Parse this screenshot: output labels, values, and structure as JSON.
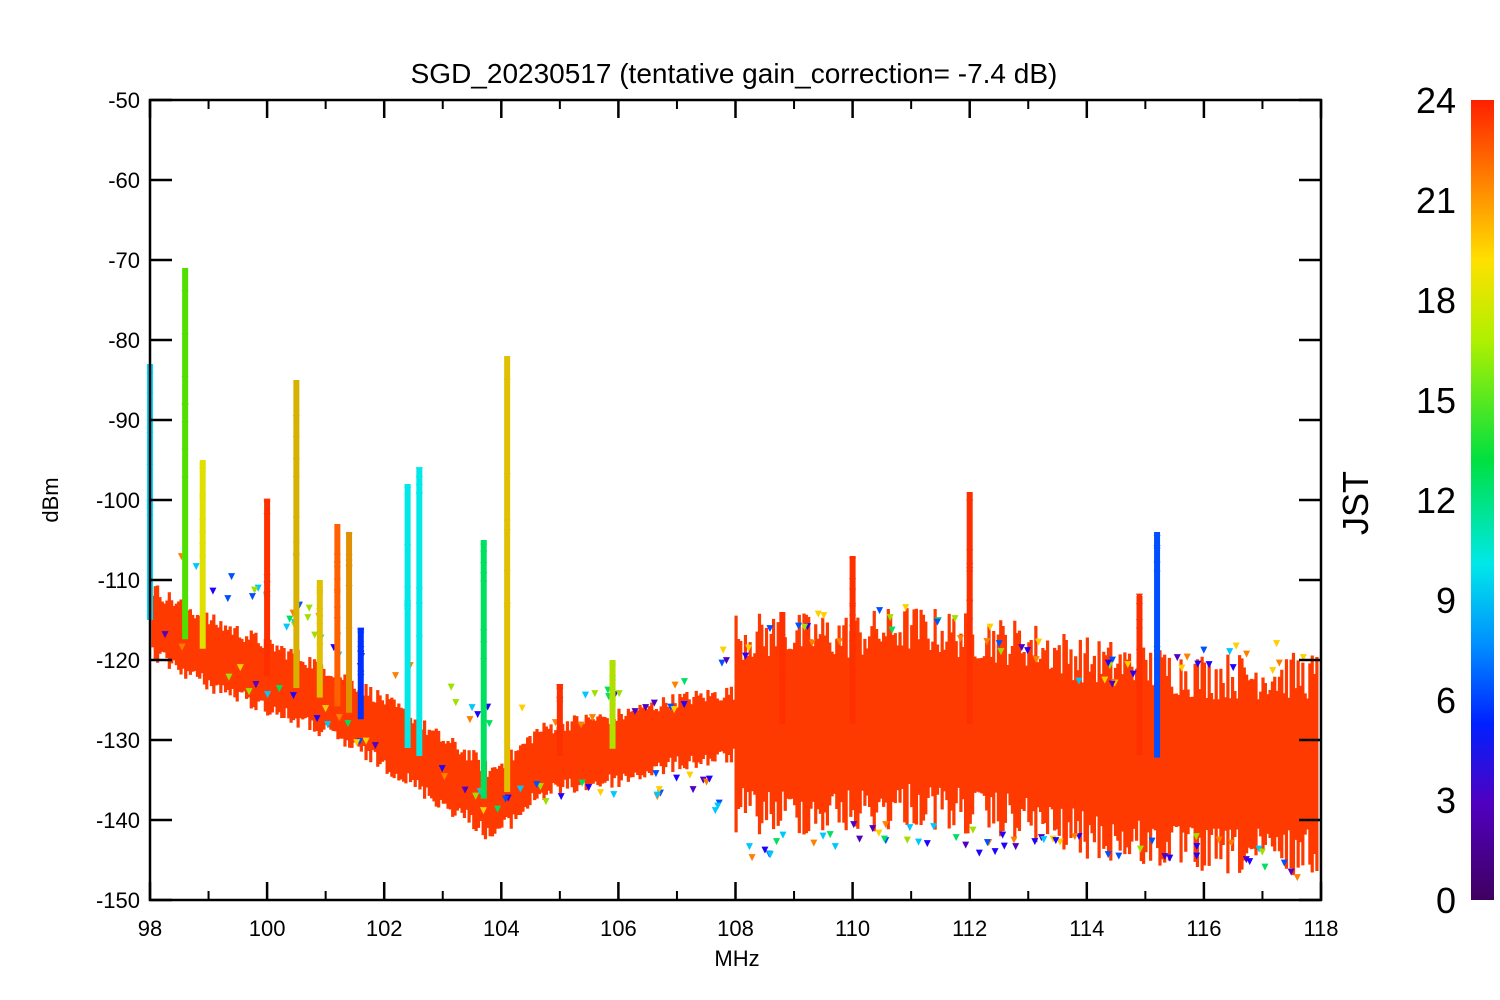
{
  "chart_data": {
    "type": "scatter",
    "title": "SGD_20230517 (tentative gain_correction= -7.4 dB)",
    "xlabel": "MHz",
    "ylabel": "dBm",
    "xlim": [
      98,
      118
    ],
    "ylim": [
      -150,
      -50
    ],
    "x_ticks": [
      "98",
      "100",
      "102",
      "104",
      "106",
      "108",
      "110",
      "112",
      "114",
      "116",
      "118"
    ],
    "y_ticks": [
      "-50",
      "-60",
      "-70",
      "-80",
      "-90",
      "-100",
      "-110",
      "-120",
      "-130",
      "-140",
      "-150"
    ],
    "colorbar": {
      "label": "JST",
      "range": [
        0,
        24
      ],
      "ticks": [
        "0",
        "3",
        "6",
        "9",
        "12",
        "15",
        "18",
        "21",
        "24"
      ],
      "colormap": "rainbow (purple-blue-cyan-green-yellow-red)"
    },
    "grid": false,
    "series": [
      {
        "description_color": "JST-colored",
        "baseline_profile": [
          [
            98,
            -115
          ],
          [
            99,
            -119
          ],
          [
            100,
            -122
          ],
          [
            101,
            -125
          ],
          [
            102,
            -129
          ],
          [
            103,
            -134
          ],
          [
            103.5,
            -136
          ],
          [
            103.8,
            -138
          ],
          [
            104.2,
            -136
          ],
          [
            104.6,
            -133
          ],
          [
            105,
            -132
          ],
          [
            106,
            -131
          ],
          [
            107,
            -129
          ],
          [
            108,
            -128
          ],
          [
            109,
            -128
          ],
          [
            110,
            -128
          ],
          [
            111,
            -127
          ],
          [
            112,
            -128
          ],
          [
            113,
            -129
          ],
          [
            114,
            -131
          ],
          [
            115,
            -132
          ],
          [
            116,
            -133
          ],
          [
            117,
            -133
          ],
          [
            118,
            -133
          ]
        ],
        "upper_envelope": [
          [
            98,
            -106
          ],
          [
            99,
            -110
          ],
          [
            100,
            -113
          ],
          [
            101,
            -117
          ],
          [
            102,
            -121
          ],
          [
            103,
            -125
          ],
          [
            103.8,
            -127
          ],
          [
            104.5,
            -128
          ],
          [
            105,
            -127
          ],
          [
            106,
            -126
          ],
          [
            107,
            -125
          ],
          [
            108,
            -119
          ],
          [
            109,
            -117
          ],
          [
            110,
            -116
          ],
          [
            111,
            -115
          ],
          [
            112,
            -116
          ],
          [
            113,
            -119
          ],
          [
            114,
            -122
          ],
          [
            115,
            -123
          ],
          [
            116,
            -121
          ],
          [
            117,
            -120
          ],
          [
            118,
            -119
          ]
        ],
        "lower_envelope": [
          [
            98,
            -117
          ],
          [
            100,
            -124
          ],
          [
            102,
            -131
          ],
          [
            103.8,
            -138.5
          ],
          [
            104.5,
            -137
          ],
          [
            106,
            -137
          ],
          [
            107.5,
            -135
          ],
          [
            108,
            -144
          ],
          [
            110,
            -142
          ],
          [
            112,
            -143
          ],
          [
            114,
            -144
          ],
          [
            116,
            -144
          ],
          [
            118,
            -147
          ]
        ],
        "spikes": [
          {
            "x": 98.0,
            "top": -83,
            "color": "#00d8ff"
          },
          {
            "x": 98.6,
            "top": -71,
            "color": "#50e000"
          },
          {
            "x": 98.9,
            "top": -95,
            "color": "#e0e000"
          },
          {
            "x": 100.0,
            "top": -100,
            "color": "#ff3000"
          },
          {
            "x": 100.5,
            "top": -85,
            "color": "#d8b000"
          },
          {
            "x": 100.9,
            "top": -110,
            "color": "#e0c000"
          },
          {
            "x": 101.2,
            "top": -103,
            "color": "#ff6000"
          },
          {
            "x": 101.4,
            "top": -104,
            "color": "#e09000"
          },
          {
            "x": 101.6,
            "top": -116,
            "color": "#0030ff"
          },
          {
            "x": 102.4,
            "top": -98,
            "color": "#00e8e8"
          },
          {
            "x": 102.6,
            "top": -96,
            "color": "#00e8e8"
          },
          {
            "x": 103.7,
            "top": -105,
            "color": "#00e060"
          },
          {
            "x": 104.1,
            "top": -82,
            "color": "#e0c000"
          },
          {
            "x": 105.0,
            "top": -123,
            "color": "#ff3000"
          },
          {
            "x": 105.9,
            "top": -120,
            "color": "#b0e000"
          },
          {
            "x": 108.8,
            "top": -114,
            "color": "#ff3000"
          },
          {
            "x": 110.0,
            "top": -107,
            "color": "#ff3000"
          },
          {
            "x": 112.0,
            "top": -99,
            "color": "#ff3000"
          },
          {
            "x": 114.9,
            "top": -112,
            "color": "#ff3000"
          },
          {
            "x": 115.2,
            "top": -104,
            "color": "#0050ff"
          }
        ]
      }
    ]
  }
}
